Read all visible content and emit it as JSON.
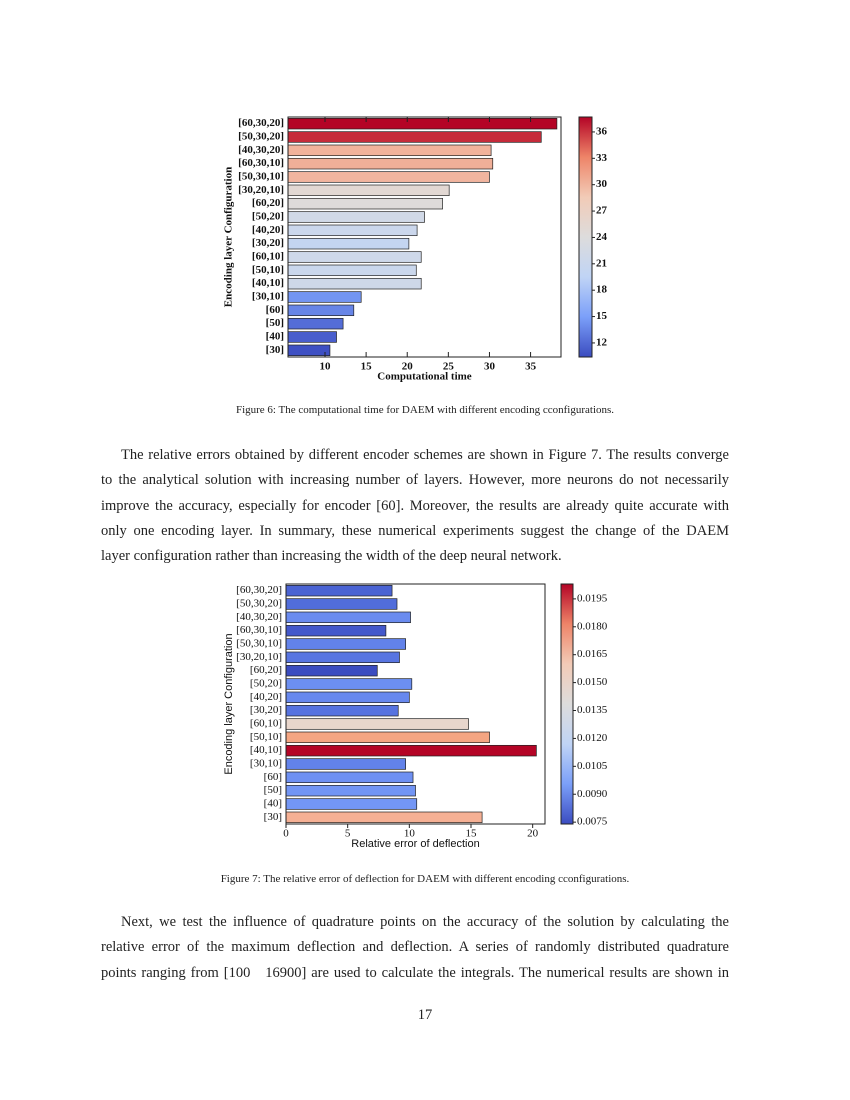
{
  "chart_data": [
    {
      "type": "bar",
      "orientation": "horizontal",
      "ylabel": "Encoding layer Configuration",
      "xlabel": "Computational time",
      "categories": [
        "[60,30,20]",
        "[50,30,20]",
        "[40,30,20]",
        "[60,30,10]",
        "[50,30,10]",
        "[30,20,10]",
        "[60,20]",
        "[50,20]",
        "[40,20]",
        "[30,20]",
        "[60,10]",
        "[50,10]",
        "[40,10]",
        "[30,10]",
        "[60]",
        "[50]",
        "[40]",
        "[30]"
      ],
      "values": [
        38.2,
        36.3,
        30.2,
        30.4,
        30.0,
        25.1,
        24.3,
        22.1,
        21.2,
        20.2,
        21.7,
        21.1,
        21.7,
        14.4,
        13.5,
        12.2,
        11.4,
        10.6
      ],
      "xlim": [
        5.5,
        38.7
      ],
      "xticks": [
        10,
        15,
        20,
        25,
        30,
        35
      ],
      "colormap": [
        "#3b4cc0",
        "#7b9ff9",
        "#c0d4f5",
        "#dddcdc",
        "#f2cbb7",
        "#ee8468",
        "#b40426"
      ],
      "clim": [
        10.4,
        37.7
      ],
      "cticks": [
        12,
        15,
        18,
        21,
        24,
        27,
        30,
        33,
        36
      ],
      "caption": "Figure 6: The computational time for DAEM with different encoding cconfigurations."
    },
    {
      "type": "bar",
      "orientation": "horizontal",
      "ylabel": "Encoding layer Configuration",
      "xlabel": "Relative error of deflection",
      "categories": [
        "[60,30,20]",
        "[50,30,20]",
        "[40,30,20]",
        "[60,30,10]",
        "[50,30,10]",
        "[30,20,10]",
        "[60,20]",
        "[50,20]",
        "[40,20]",
        "[30,20]",
        "[60,10]",
        "[50,10]",
        "[40,10]",
        "[30,10]",
        "[60]",
        "[50]",
        "[40]",
        "[30]"
      ],
      "values": [
        8.6,
        9.0,
        10.1,
        8.1,
        9.7,
        9.2,
        7.4,
        10.2,
        10.0,
        9.1,
        14.8,
        16.5,
        20.3,
        9.7,
        10.3,
        10.5,
        10.6,
        15.9
      ],
      "colors": [
        "#4a63d3",
        "#516ddb",
        "#6a8bef",
        "#4358cb",
        "#6282ea",
        "#5875e1",
        "#3b4cc0",
        "#6c8ff1",
        "#6788ee",
        "#5673e0",
        "#e8d6cc",
        "#f4a582",
        "#b40426",
        "#6282ea",
        "#6e90f2",
        "#7295f4",
        "#7396f5",
        "#f5b094"
      ],
      "xlim": [
        0,
        21
      ],
      "xticks": [
        0,
        5,
        10,
        15,
        20
      ],
      "colormap": [
        "#3b4cc0",
        "#7b9ff9",
        "#c0d4f5",
        "#dddcdc",
        "#f2cbb7",
        "#ee8468",
        "#b40426"
      ],
      "clim": [
        0.0074,
        0.0203
      ],
      "cticks": [
        0.0075,
        {
          "value": 0.009,
          "label": "0.0090"
        },
        0.0105,
        {
          "value": 0.012,
          "label": "0.0120"
        },
        0.0135,
        {
          "value": 0.015,
          "label": "0.0150"
        },
        0.0165,
        {
          "value": 0.018,
          "label": "0.0180"
        },
        0.0195
      ],
      "caption": "Figure 7: The relative error of deflection for DAEM with different encoding cconfigurations."
    }
  ],
  "paragraphs": [
    [
      "The relative errors obtained by different encoder schemes are shown in Figure 7. The results converge",
      "to the analytical solution with increasing number of layers. However, more neurons do not necessarily",
      "improve the accuracy, especially for encoder [60]. Moreover, the results are already quite accurate with",
      "only one encoding layer. In summary, these numerical experiments suggest the change of the DAEM",
      "layer configuration rather than increasing the width of the deep neural network."
    ],
    [
      "Next, we test the influence of quadrature points on the accuracy of the solution by calculating the",
      "relative error of the maximum deflection and deflection. A series of randomly distributed quadrature",
      "points ranging from [100   16900] are used to calculate the integrals. The numerical results are shown in"
    ]
  ],
  "page_number": "17"
}
